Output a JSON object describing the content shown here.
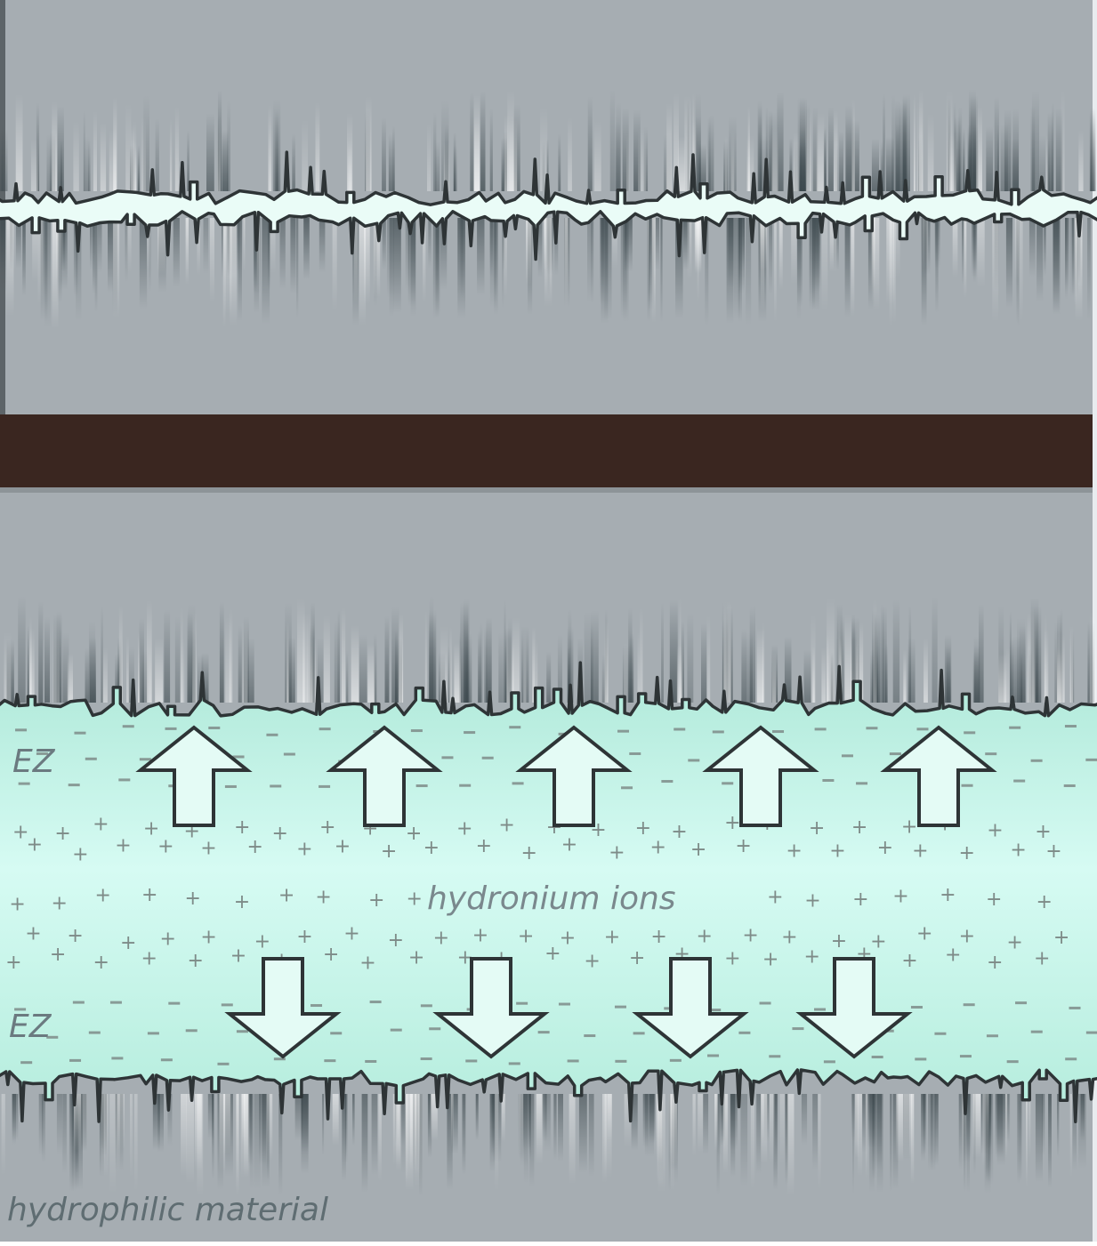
{
  "labels": {
    "ez_top": "EZ",
    "ez_bottom": "EZ",
    "ions": "hydronium ions",
    "material": "hydrophilic material"
  },
  "colors": {
    "background_gray": "#a4abb0",
    "divider": "#3a2620",
    "water_green": "#bdf0e2",
    "water_light": "#d9fbf2",
    "outline": "#2e3436",
    "sign": "#7e8b88"
  },
  "icons": {
    "arrow_up": "arrow-up-icon",
    "arrow_down": "arrow-down-icon"
  }
}
